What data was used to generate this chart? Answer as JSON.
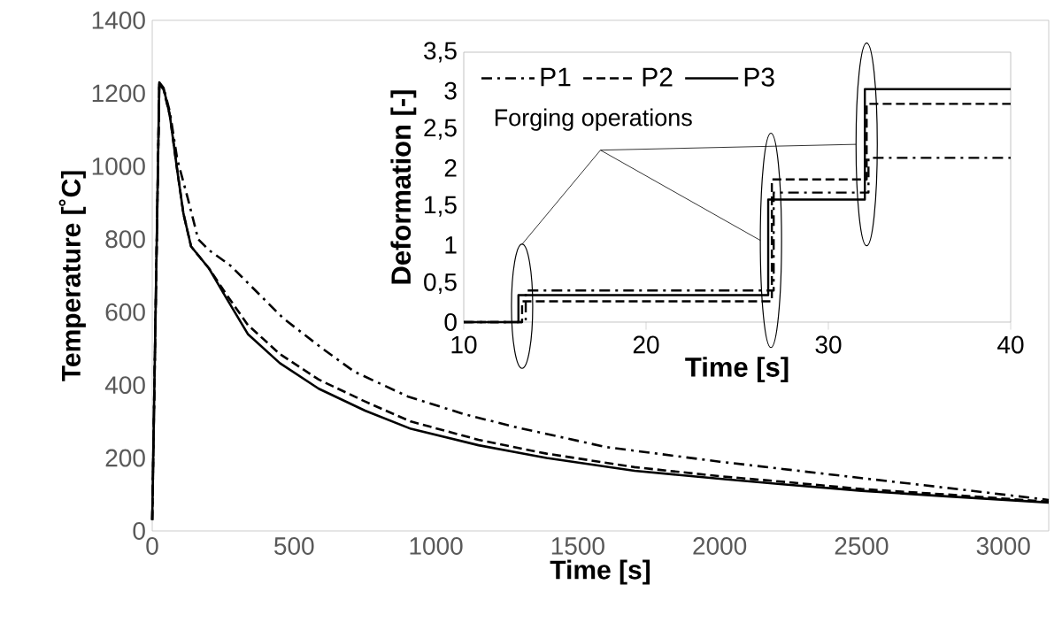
{
  "chart_data": [
    {
      "type": "line",
      "xlabel": "Time [s]",
      "ylabel": "Temperature [˚C]",
      "xlim": [
        0,
        3160
      ],
      "ylim": [
        0,
        1400
      ],
      "xticks": [
        0,
        500,
        1000,
        1500,
        2000,
        2500,
        3000
      ],
      "yticks": [
        0,
        200,
        400,
        600,
        800,
        1000,
        1200,
        1400
      ],
      "grid": false,
      "series": [
        {
          "color": "#000000",
          "line_style": "dashdot",
          "x": [
            0,
            25,
            40,
            62,
            88,
            125,
            162,
            200,
            275,
            350,
            462,
            600,
            712,
            900,
            1100,
            1285,
            1600,
            2000,
            2222,
            2500,
            2847,
            3160
          ],
          "values": [
            30,
            1225,
            1215,
            1150,
            1020,
            913,
            800,
            770,
            728,
            670,
            583,
            500,
            437,
            369,
            320,
            284,
            230,
            190,
            170,
            145,
            114,
            85
          ]
        },
        {
          "color": "#000000",
          "line_style": "dashed",
          "x": [
            0,
            25,
            40,
            62,
            88,
            110,
            137,
            200,
            260,
            337,
            450,
            587,
            750,
            912,
            1150,
            1390,
            1700,
            2000,
            2222,
            2500,
            2800,
            3160
          ],
          "values": [
            30,
            1225,
            1210,
            1140,
            990,
            870,
            780,
            720,
            650,
            565,
            485,
            415,
            355,
            300,
            250,
            212,
            175,
            150,
            135,
            115,
            100,
            80
          ]
        },
        {
          "color": "#000000",
          "line_style": "solid",
          "x": [
            0,
            25,
            40,
            62,
            88,
            110,
            137,
            200,
            260,
            337,
            450,
            587,
            750,
            912,
            1150,
            1390,
            1700,
            2000,
            2222,
            2500,
            2800,
            3160
          ],
          "values": [
            30,
            1230,
            1215,
            1140,
            990,
            870,
            780,
            720,
            640,
            540,
            460,
            390,
            330,
            280,
            235,
            200,
            165,
            143,
            128,
            110,
            95,
            78
          ]
        }
      ]
    },
    {
      "type": "step",
      "xlabel": "Time [s]",
      "ylabel": "Deformation [-]",
      "xlim": [
        10,
        40
      ],
      "ylim": [
        0,
        3.5
      ],
      "xticks": [
        10,
        20,
        30,
        40
      ],
      "yticks": [
        0,
        {
          "value": 0.5,
          "label": "0,5"
        },
        1,
        {
          "value": 1.5,
          "label": "1,5"
        },
        2,
        {
          "value": 2.5,
          "label": "2,5"
        },
        3,
        {
          "value": 3.5,
          "label": "3,5"
        }
      ],
      "legend": "top left",
      "grid": false,
      "annotations": [
        "Forging operations"
      ],
      "series": [
        {
          "name": "P1",
          "color": "#000000",
          "line_style": "dashdot",
          "x": [
            10,
            13.4,
            27.0,
            32.2,
            40
          ],
          "values": [
            0,
            0.41,
            1.68,
            2.13,
            2.13
          ]
        },
        {
          "name": "P2",
          "color": "#000000",
          "line_style": "dashed",
          "x": [
            10,
            13.2,
            26.9,
            32.1,
            40
          ],
          "values": [
            0,
            0.27,
            1.85,
            2.83,
            2.83
          ]
        },
        {
          "name": "P3",
          "color": "#000000",
          "line_style": "solid",
          "x": [
            10,
            13.0,
            26.7,
            32.0,
            40
          ],
          "values": [
            0,
            0.35,
            1.59,
            3.02,
            3.02
          ]
        }
      ]
    }
  ]
}
